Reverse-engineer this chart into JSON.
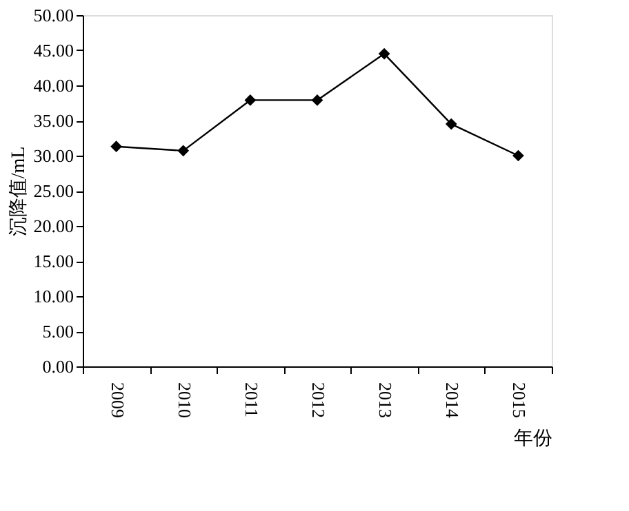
{
  "chart_data": {
    "type": "line",
    "xlabel": "年份",
    "ylabel": "沉降值/mL",
    "categories": [
      "2009",
      "2010",
      "2011",
      "2012",
      "2013",
      "2014",
      "2015"
    ],
    "series": [
      {
        "color": "#000000",
        "values": [
          31.3,
          30.7,
          37.9,
          37.9,
          44.5,
          34.5,
          30.0
        ]
      }
    ],
    "ylim": [
      0,
      50
    ],
    "yticks": [
      {
        "value": 0,
        "label": "0.00"
      },
      {
        "value": 5,
        "label": "5.00"
      },
      {
        "value": 10,
        "label": "10.00"
      },
      {
        "value": 15,
        "label": "15.00"
      },
      {
        "value": 20,
        "label": "20.00"
      },
      {
        "value": 25,
        "label": "25.00"
      },
      {
        "value": 30,
        "label": "30.00"
      },
      {
        "value": 35,
        "label": "35.00"
      },
      {
        "value": 40,
        "label": "40.00"
      },
      {
        "value": 45,
        "label": "45.00"
      },
      {
        "value": 50,
        "label": "50.00"
      }
    ],
    "marker": "diamond",
    "line_style": "solid"
  }
}
